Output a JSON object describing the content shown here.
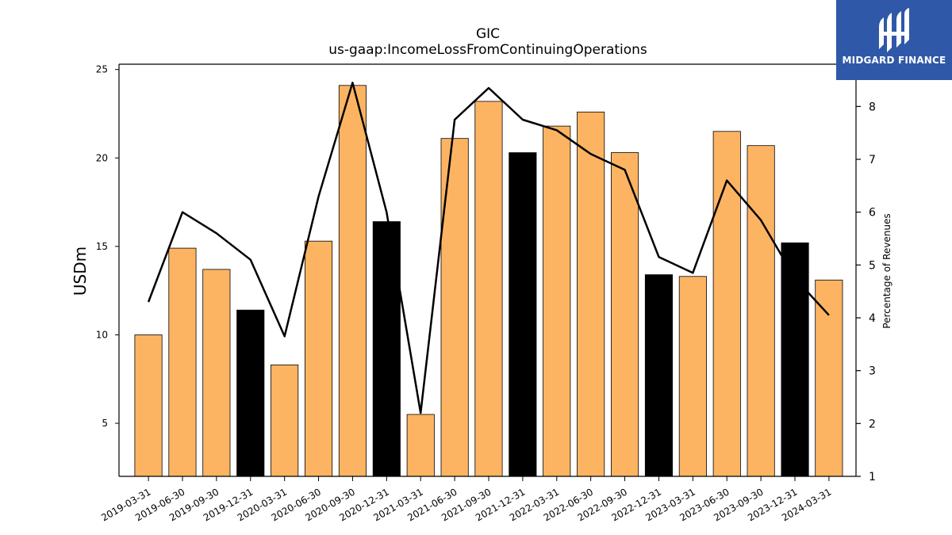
{
  "chart_data": {
    "type": "bar",
    "title": "GIC",
    "subtitle": "us-gaap:IncomeLossFromContinuingOperations",
    "ylabel": "USDm",
    "ylabel_right": "Percentage of Revenues",
    "ylim": [
      2,
      25.3
    ],
    "ylim_right": [
      1,
      8.8
    ],
    "yticks": [
      5,
      10,
      15,
      20,
      25
    ],
    "yticks_right": [
      1,
      2,
      3,
      4,
      5,
      6,
      7,
      8
    ],
    "categories": [
      "2019-03-31",
      "2019-06-30",
      "2019-09-30",
      "2019-12-31",
      "2020-03-31",
      "2020-06-30",
      "2020-09-30",
      "2020-12-31",
      "2021-03-31",
      "2021-06-30",
      "2021-09-30",
      "2021-12-31",
      "2022-03-31",
      "2022-06-30",
      "2022-09-30",
      "2022-12-31",
      "2023-03-31",
      "2023-06-30",
      "2023-09-30",
      "2023-12-31",
      "2024-03-31"
    ],
    "values": [
      10.0,
      14.9,
      13.7,
      11.4,
      8.3,
      15.3,
      24.1,
      16.4,
      5.5,
      21.1,
      23.2,
      20.3,
      21.8,
      22.6,
      20.3,
      13.4,
      13.3,
      21.5,
      20.7,
      15.2,
      13.1
    ],
    "bar_kind": [
      "quarter",
      "quarter",
      "quarter",
      "year-end",
      "quarter",
      "quarter",
      "quarter",
      "year-end",
      "quarter",
      "quarter",
      "quarter",
      "year-end",
      "quarter",
      "quarter",
      "quarter",
      "year-end",
      "quarter",
      "quarter",
      "quarter",
      "year-end",
      "quarter"
    ],
    "line_values": [
      4.3,
      6.0,
      5.6,
      5.1,
      3.65,
      6.3,
      8.45,
      6.0,
      2.2,
      7.75,
      8.35,
      7.75,
      7.55,
      7.1,
      6.8,
      5.15,
      4.85,
      6.6,
      5.85,
      4.75,
      4.05
    ],
    "colors": {
      "quarter": "#fdb462",
      "year-end": "#000000",
      "line": "#000000",
      "edge": "#000000"
    },
    "grid": false,
    "legend": "none"
  },
  "logo": {
    "text": "MIDGARD FINANCE",
    "background": "#2f58a8"
  }
}
